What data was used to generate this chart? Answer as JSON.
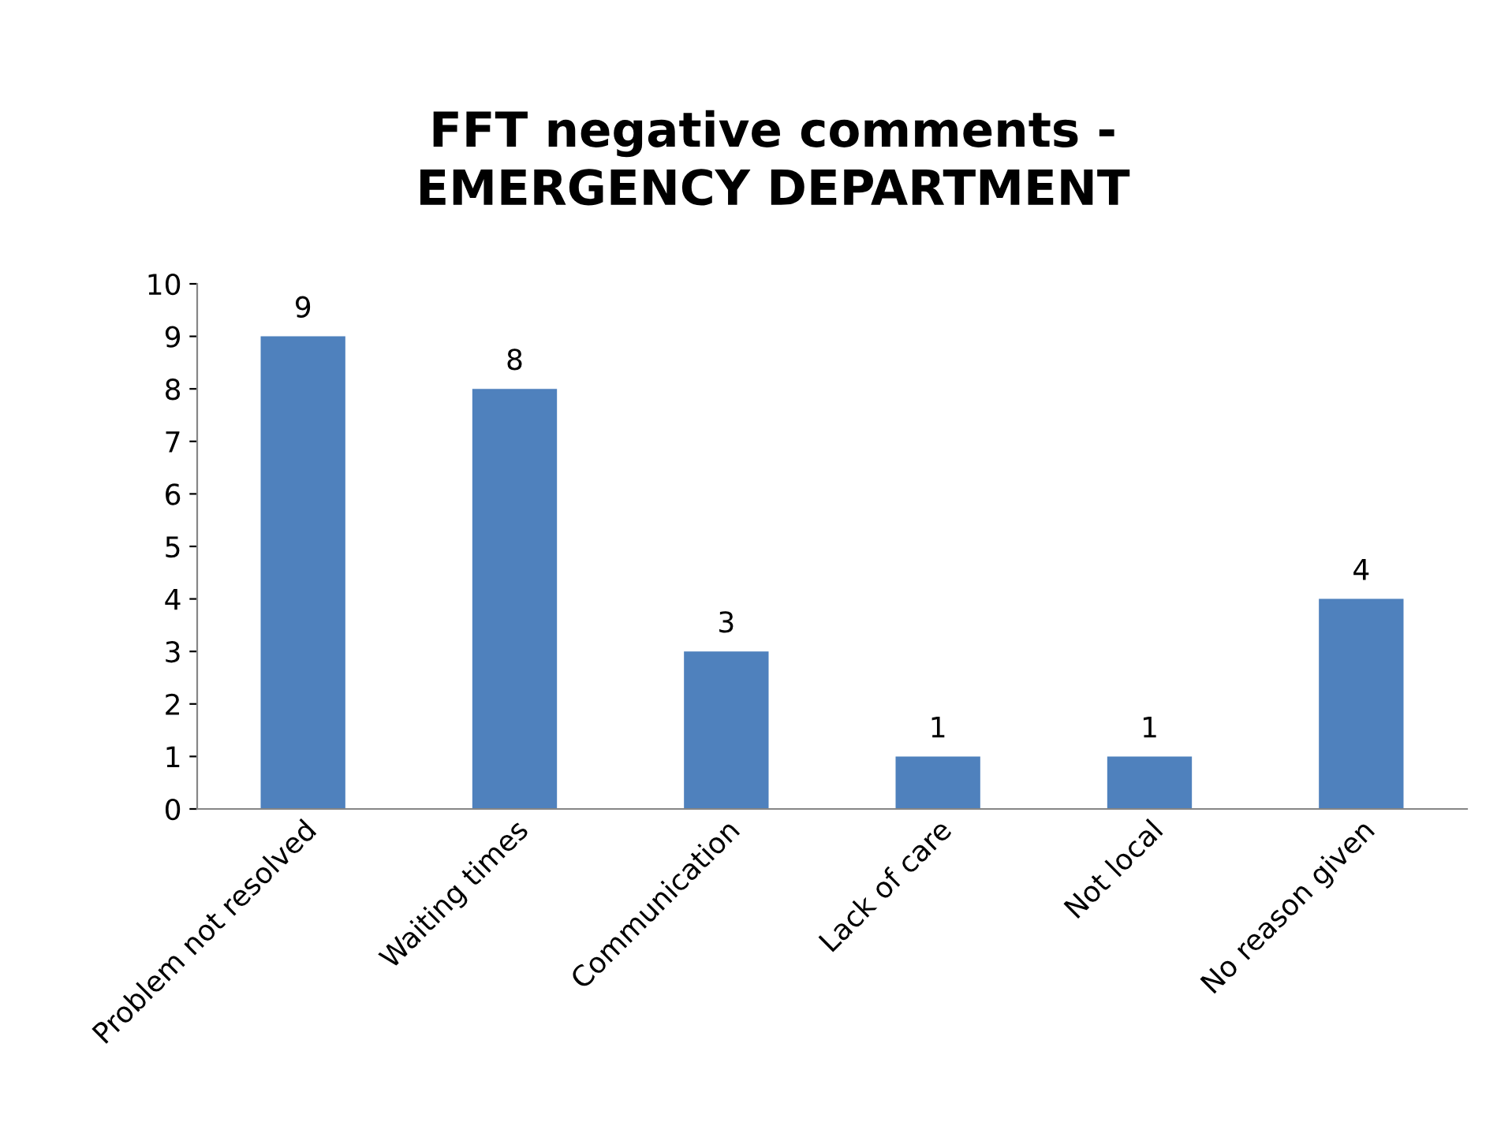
{
  "chart_data": {
    "type": "bar",
    "title": "FFT negative comments -\nEMERGENCY DEPARTMENT",
    "categories": [
      "Problem not resolved",
      "Waiting times",
      "Communication",
      "Lack of care",
      "Not local",
      "No reason given"
    ],
    "values": [
      9,
      8,
      3,
      1,
      1,
      4
    ],
    "color": "#4f81bd",
    "ylim": [
      0,
      10
    ],
    "yticks": [
      0,
      1,
      2,
      3,
      4,
      5,
      6,
      7,
      8,
      9,
      10
    ],
    "grid": false,
    "data_labels": true
  }
}
